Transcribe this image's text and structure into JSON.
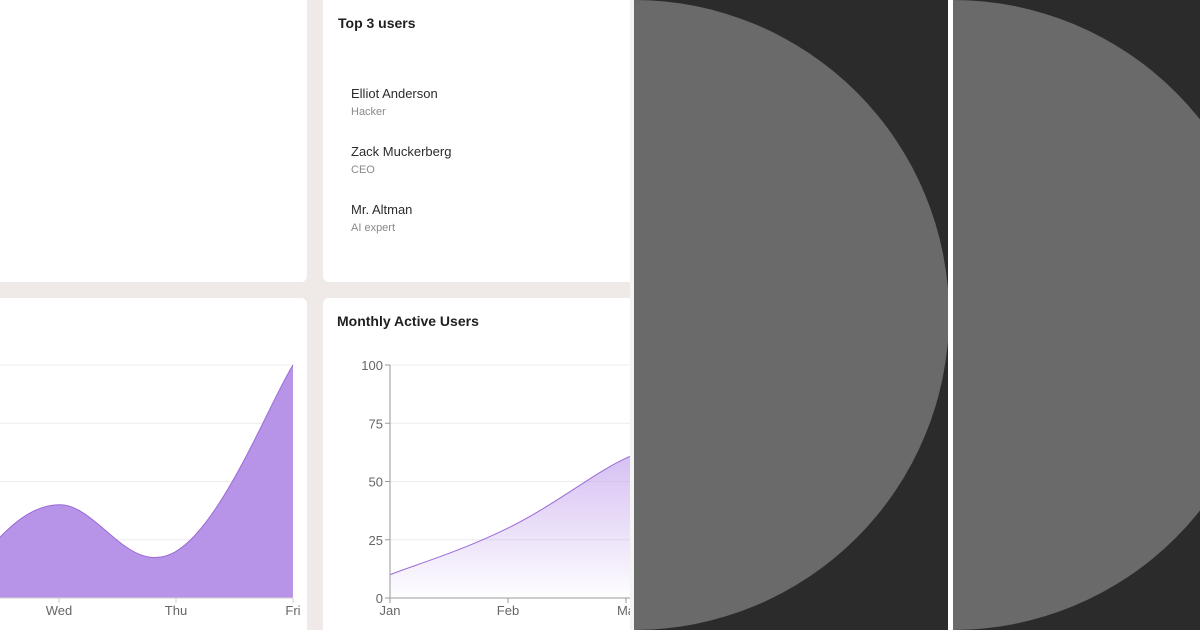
{
  "top_users": {
    "title": "Top 3 users",
    "users": [
      {
        "name": "Elliot Anderson",
        "role": "Hacker"
      },
      {
        "name": "Zack Muckerberg",
        "role": "CEO"
      },
      {
        "name": "Mr. Altman",
        "role": "AI expert"
      }
    ]
  },
  "colors": {
    "accent_fill": "#b794e8",
    "accent_line": "#9b6ad8",
    "panel_bg": "#2b2b2b",
    "circle": "#6a6a6a"
  },
  "chart_data": [
    {
      "type": "area",
      "title": "",
      "x": [
        "Wed",
        "Thu",
        "Fri"
      ],
      "values": [
        40,
        20,
        100
      ],
      "ylim": [
        0,
        100
      ],
      "grid": true
    },
    {
      "type": "area",
      "title": "Monthly Active Users",
      "x": [
        "Jan",
        "Feb",
        "Ma"
      ],
      "values": [
        10,
        30,
        60
      ],
      "yticks": [
        "0",
        "25",
        "50",
        "75",
        "100"
      ],
      "ylim": [
        0,
        100
      ],
      "grid": true
    }
  ]
}
